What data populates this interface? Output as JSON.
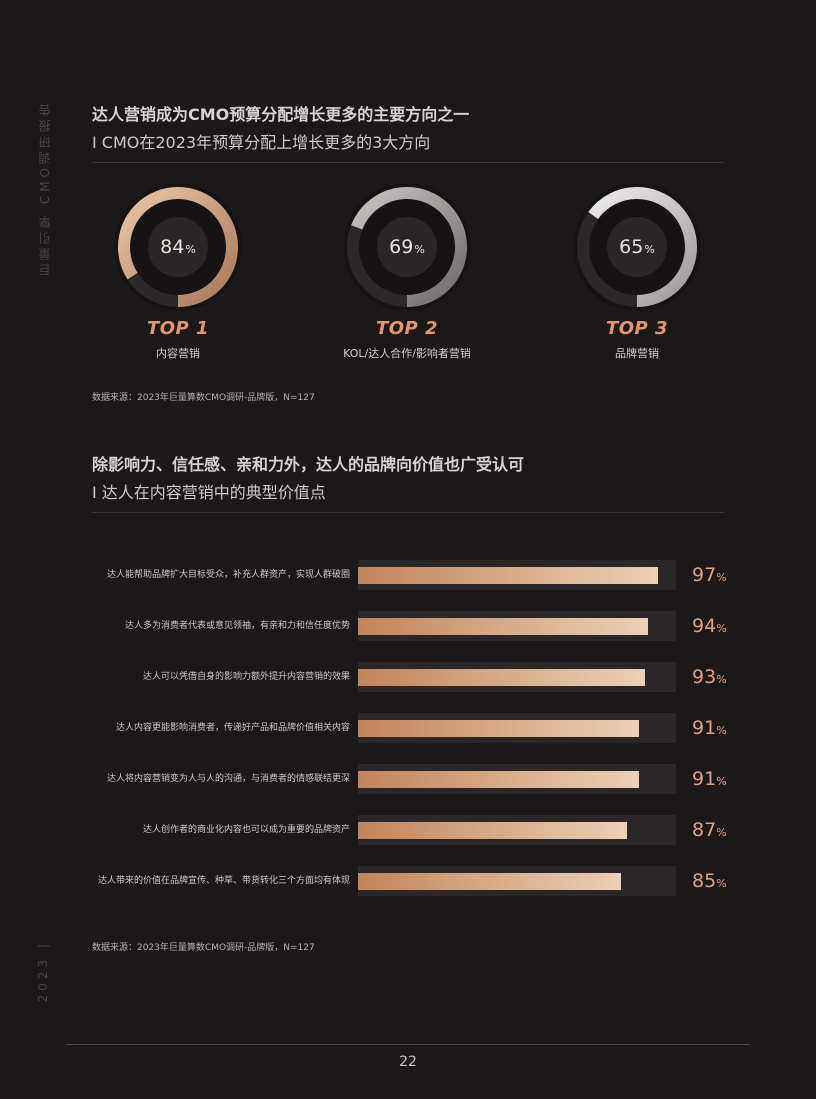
{
  "side": {
    "brand": "巨量引擎 CMO调研报告",
    "year": "2023 |"
  },
  "section1": {
    "title": "达人营销成为CMO预算分配增长更多的主要方向之一",
    "subtitle": "I CMO在2023年预算分配上增长更多的3大方向",
    "source": "数据来源：2023年巨量算数CMO调研-品牌版，N=127",
    "items": [
      {
        "value": 84,
        "unit": "%",
        "rank": "TOP 1",
        "label": "内容营销",
        "color_start": "#e9c6a6",
        "color_end": "#a8785a"
      },
      {
        "value": 69,
        "unit": "%",
        "rank": "TOP 2",
        "label": "KOL/达人合作/影响者营销",
        "color_start": "#c9c6c4",
        "color_end": "#6d6a69"
      },
      {
        "value": 65,
        "unit": "%",
        "rank": "TOP 3",
        "label": "品牌营销",
        "color_start": "#f1f0ef",
        "color_end": "#9b9998"
      }
    ]
  },
  "section2": {
    "title": "除影响力、信任感、亲和力外，达人的品牌向价值也广受认可",
    "subtitle": "I 达人在内容营销中的典型价值点",
    "source": "数据来源：2023年巨量算数CMO调研-品牌版，N=127"
  },
  "chart_data": {
    "type": "bar",
    "orientation": "horizontal",
    "categories": [
      "达人能帮助品牌扩大目标受众，补充人群资产，实现人群破圈",
      "达人多为消费者代表或意见领袖，有亲和力和信任度优势",
      "达人可以凭借自身的影响力额外提升内容营销的效果",
      "达人内容更能影响消费者，传递好产品和品牌价值相关内容",
      "达人将内容营销变为人与人的沟通，与消费者的情感联结更深",
      "达人创作者的商业化内容也可以成为重要的品牌资产",
      "达人带来的价值在品牌宣传、种草、带货转化三个方面均有体现"
    ],
    "values": [
      97,
      94,
      93,
      91,
      91,
      87,
      85
    ],
    "value_labels": [
      "97",
      "94",
      "93",
      "91",
      "91",
      "87",
      "85"
    ],
    "unit": "%",
    "xlim": [
      0,
      100
    ]
  },
  "footer": {
    "page": "22"
  },
  "colors": {
    "accent": "#e7956f",
    "background": "#1b1819",
    "bar_start": "#c2845a",
    "bar_end": "#ecd0b5"
  }
}
